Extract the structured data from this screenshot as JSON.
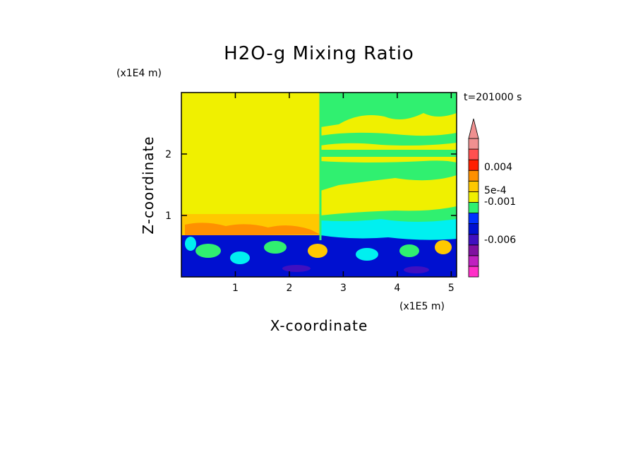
{
  "chart_data": {
    "type": "heatmap",
    "title": "H2O-g Mixing Ratio",
    "xlabel": "X-coordinate",
    "ylabel": "Z-coordinate",
    "x_scale_label": "(x1E5 m)",
    "y_scale_label": "(x1E4 m)",
    "time_label": "t=201000 s",
    "xlim": [
      0.0,
      5.1
    ],
    "ylim": [
      0.0,
      3.0
    ],
    "x_ticks": [
      1,
      2,
      3,
      4,
      5
    ],
    "x_tick_labels": [
      "1",
      "2",
      "3",
      "4",
      "5"
    ],
    "y_ticks": [
      1,
      2
    ],
    "y_tick_labels": [
      "1",
      "2"
    ],
    "colorbar": {
      "colors": [
        "#ff30c8",
        "#c020c0",
        "#8010a0",
        "#4010c0",
        "#0010d0",
        "#0030ff",
        "#30f070",
        "#f0f000",
        "#ffc800",
        "#ff9000",
        "#ff2000",
        "#ff5050",
        "#f09090"
      ],
      "labels": [
        "0.004",
        "5e-4",
        "-0.001",
        "-0.006"
      ],
      "label_values": [
        0.004,
        0.0005,
        -0.001,
        -0.006
      ],
      "extend": "max"
    },
    "regions": [
      {
        "x": [
          0.0,
          5.1
        ],
        "z": [
          0.0,
          3.0
        ],
        "color": "#f0f000"
      },
      {
        "x": [
          2.6,
          5.1
        ],
        "z": [
          1.4,
          3.0
        ],
        "color": "#30f070"
      },
      {
        "x": [
          0.0,
          2.6
        ],
        "z": [
          0.72,
          1.05
        ],
        "color": "#ffc800"
      },
      {
        "x": [
          2.6,
          5.1
        ],
        "z": [
          0.6,
          1.0
        ],
        "color": "#00f0f0"
      },
      {
        "x": [
          0.0,
          5.1
        ],
        "z": [
          0.0,
          0.7
        ],
        "color": "#0010d0"
      }
    ]
  }
}
